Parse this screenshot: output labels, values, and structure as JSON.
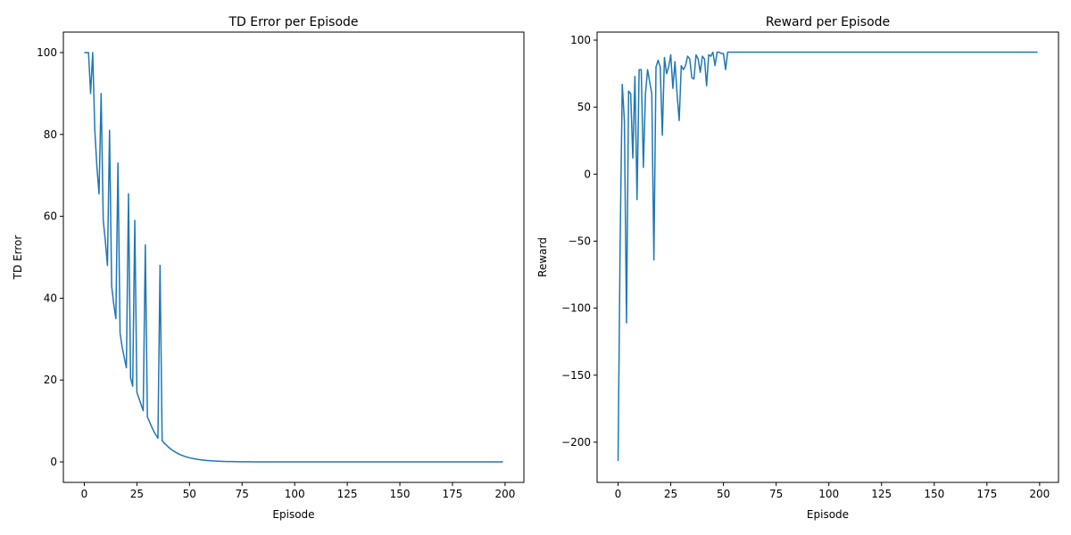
{
  "chart_data": [
    {
      "type": "line",
      "title": "TD Error per Episode",
      "xlabel": "Episode",
      "ylabel": "TD Error",
      "xlim": [
        -9.95,
        208.95
      ],
      "ylim": [
        -5,
        105
      ],
      "xticks": [
        0,
        25,
        50,
        75,
        100,
        125,
        150,
        175,
        200
      ],
      "xtick_labels": [
        "0",
        "25",
        "50",
        "75",
        "100",
        "125",
        "150",
        "175",
        "200"
      ],
      "yticks": [
        0,
        20,
        40,
        60,
        80,
        100
      ],
      "ytick_labels": [
        "0",
        "20",
        "40",
        "60",
        "80",
        "100"
      ],
      "grid": false,
      "legend": "none",
      "color": "#1f77b4",
      "series": [
        {
          "x": [
            0,
            1,
            2,
            3,
            4,
            5,
            6,
            7,
            8,
            9,
            10,
            11,
            12,
            13,
            14,
            15,
            16,
            17,
            18,
            19,
            20,
            21,
            22,
            23,
            24,
            25,
            26,
            27,
            28,
            29,
            30,
            31,
            32,
            33,
            34,
            35,
            36,
            37,
            38,
            39,
            40,
            41,
            42,
            43,
            44,
            45,
            46,
            47,
            48,
            49,
            50,
            52,
            54,
            56,
            58,
            60,
            62,
            64,
            66,
            68,
            70,
            72,
            74,
            76,
            78,
            80,
            85,
            90,
            95,
            100,
            110,
            120,
            130,
            140,
            150,
            160,
            170,
            180,
            190,
            199
          ],
          "y": [
            100,
            100,
            100,
            90,
            100,
            81,
            72,
            65.5,
            90,
            59,
            54,
            48,
            81,
            43,
            38.5,
            35,
            73,
            31.5,
            28,
            25.5,
            23,
            65.5,
            20.5,
            18.5,
            59,
            17,
            15.5,
            14,
            12.5,
            53,
            11,
            9.8,
            8.6,
            7.5,
            6.6,
            5.8,
            48,
            5.2,
            4.6,
            4.1,
            3.6,
            3.2,
            2.8,
            2.5,
            2.2,
            1.9,
            1.7,
            1.5,
            1.3,
            1.15,
            1.0,
            0.8,
            0.62,
            0.48,
            0.37,
            0.29,
            0.22,
            0.17,
            0.13,
            0.1,
            0.08,
            0.06,
            0.05,
            0.04,
            0.03,
            0.02,
            0.01,
            0.005,
            0.002,
            0.001,
            0,
            0,
            0,
            0,
            0,
            0,
            0,
            0,
            0,
            0
          ]
        }
      ]
    },
    {
      "type": "line",
      "title": "Reward per Episode",
      "xlabel": "Episode",
      "ylabel": "Reward",
      "xlim": [
        -9.95,
        208.95
      ],
      "ylim": [
        -230,
        106
      ],
      "xticks": [
        0,
        25,
        50,
        75,
        100,
        125,
        150,
        175,
        200
      ],
      "xtick_labels": [
        "0",
        "25",
        "50",
        "75",
        "100",
        "125",
        "150",
        "175",
        "200"
      ],
      "yticks": [
        -200,
        -150,
        -100,
        -50,
        0,
        50,
        100
      ],
      "ytick_labels": [
        "−200",
        "−150",
        "−100",
        "−50",
        "0",
        "50",
        "100"
      ],
      "grid": false,
      "legend": "none",
      "color": "#1f77b4",
      "series": [
        {
          "x": [
            0,
            1,
            2,
            3,
            4,
            5,
            6,
            7,
            8,
            9,
            10,
            11,
            12,
            13,
            14,
            15,
            16,
            17,
            18,
            19,
            20,
            21,
            22,
            23,
            24,
            25,
            26,
            27,
            28,
            29,
            30,
            31,
            32,
            33,
            34,
            35,
            36,
            37,
            38,
            39,
            40,
            41,
            42,
            43,
            44,
            45,
            46,
            47,
            48,
            49,
            50,
            51,
            52,
            53,
            54,
            60,
            80,
            100,
            120,
            140,
            160,
            180,
            199
          ],
          "y": [
            -214,
            -50,
            67,
            40,
            -111,
            62,
            60,
            12,
            73,
            -19,
            78,
            78,
            5,
            60,
            78,
            69,
            60,
            -64,
            80,
            85,
            80,
            29,
            87,
            75,
            80,
            89,
            64,
            84,
            60,
            40,
            81,
            78,
            81,
            88,
            86,
            72,
            71,
            89,
            86,
            76,
            88,
            86,
            66,
            89,
            88,
            91,
            81,
            91,
            91,
            90,
            90,
            78,
            91,
            91,
            91,
            91,
            91,
            91,
            91,
            91,
            91,
            91,
            91
          ]
        }
      ]
    }
  ]
}
